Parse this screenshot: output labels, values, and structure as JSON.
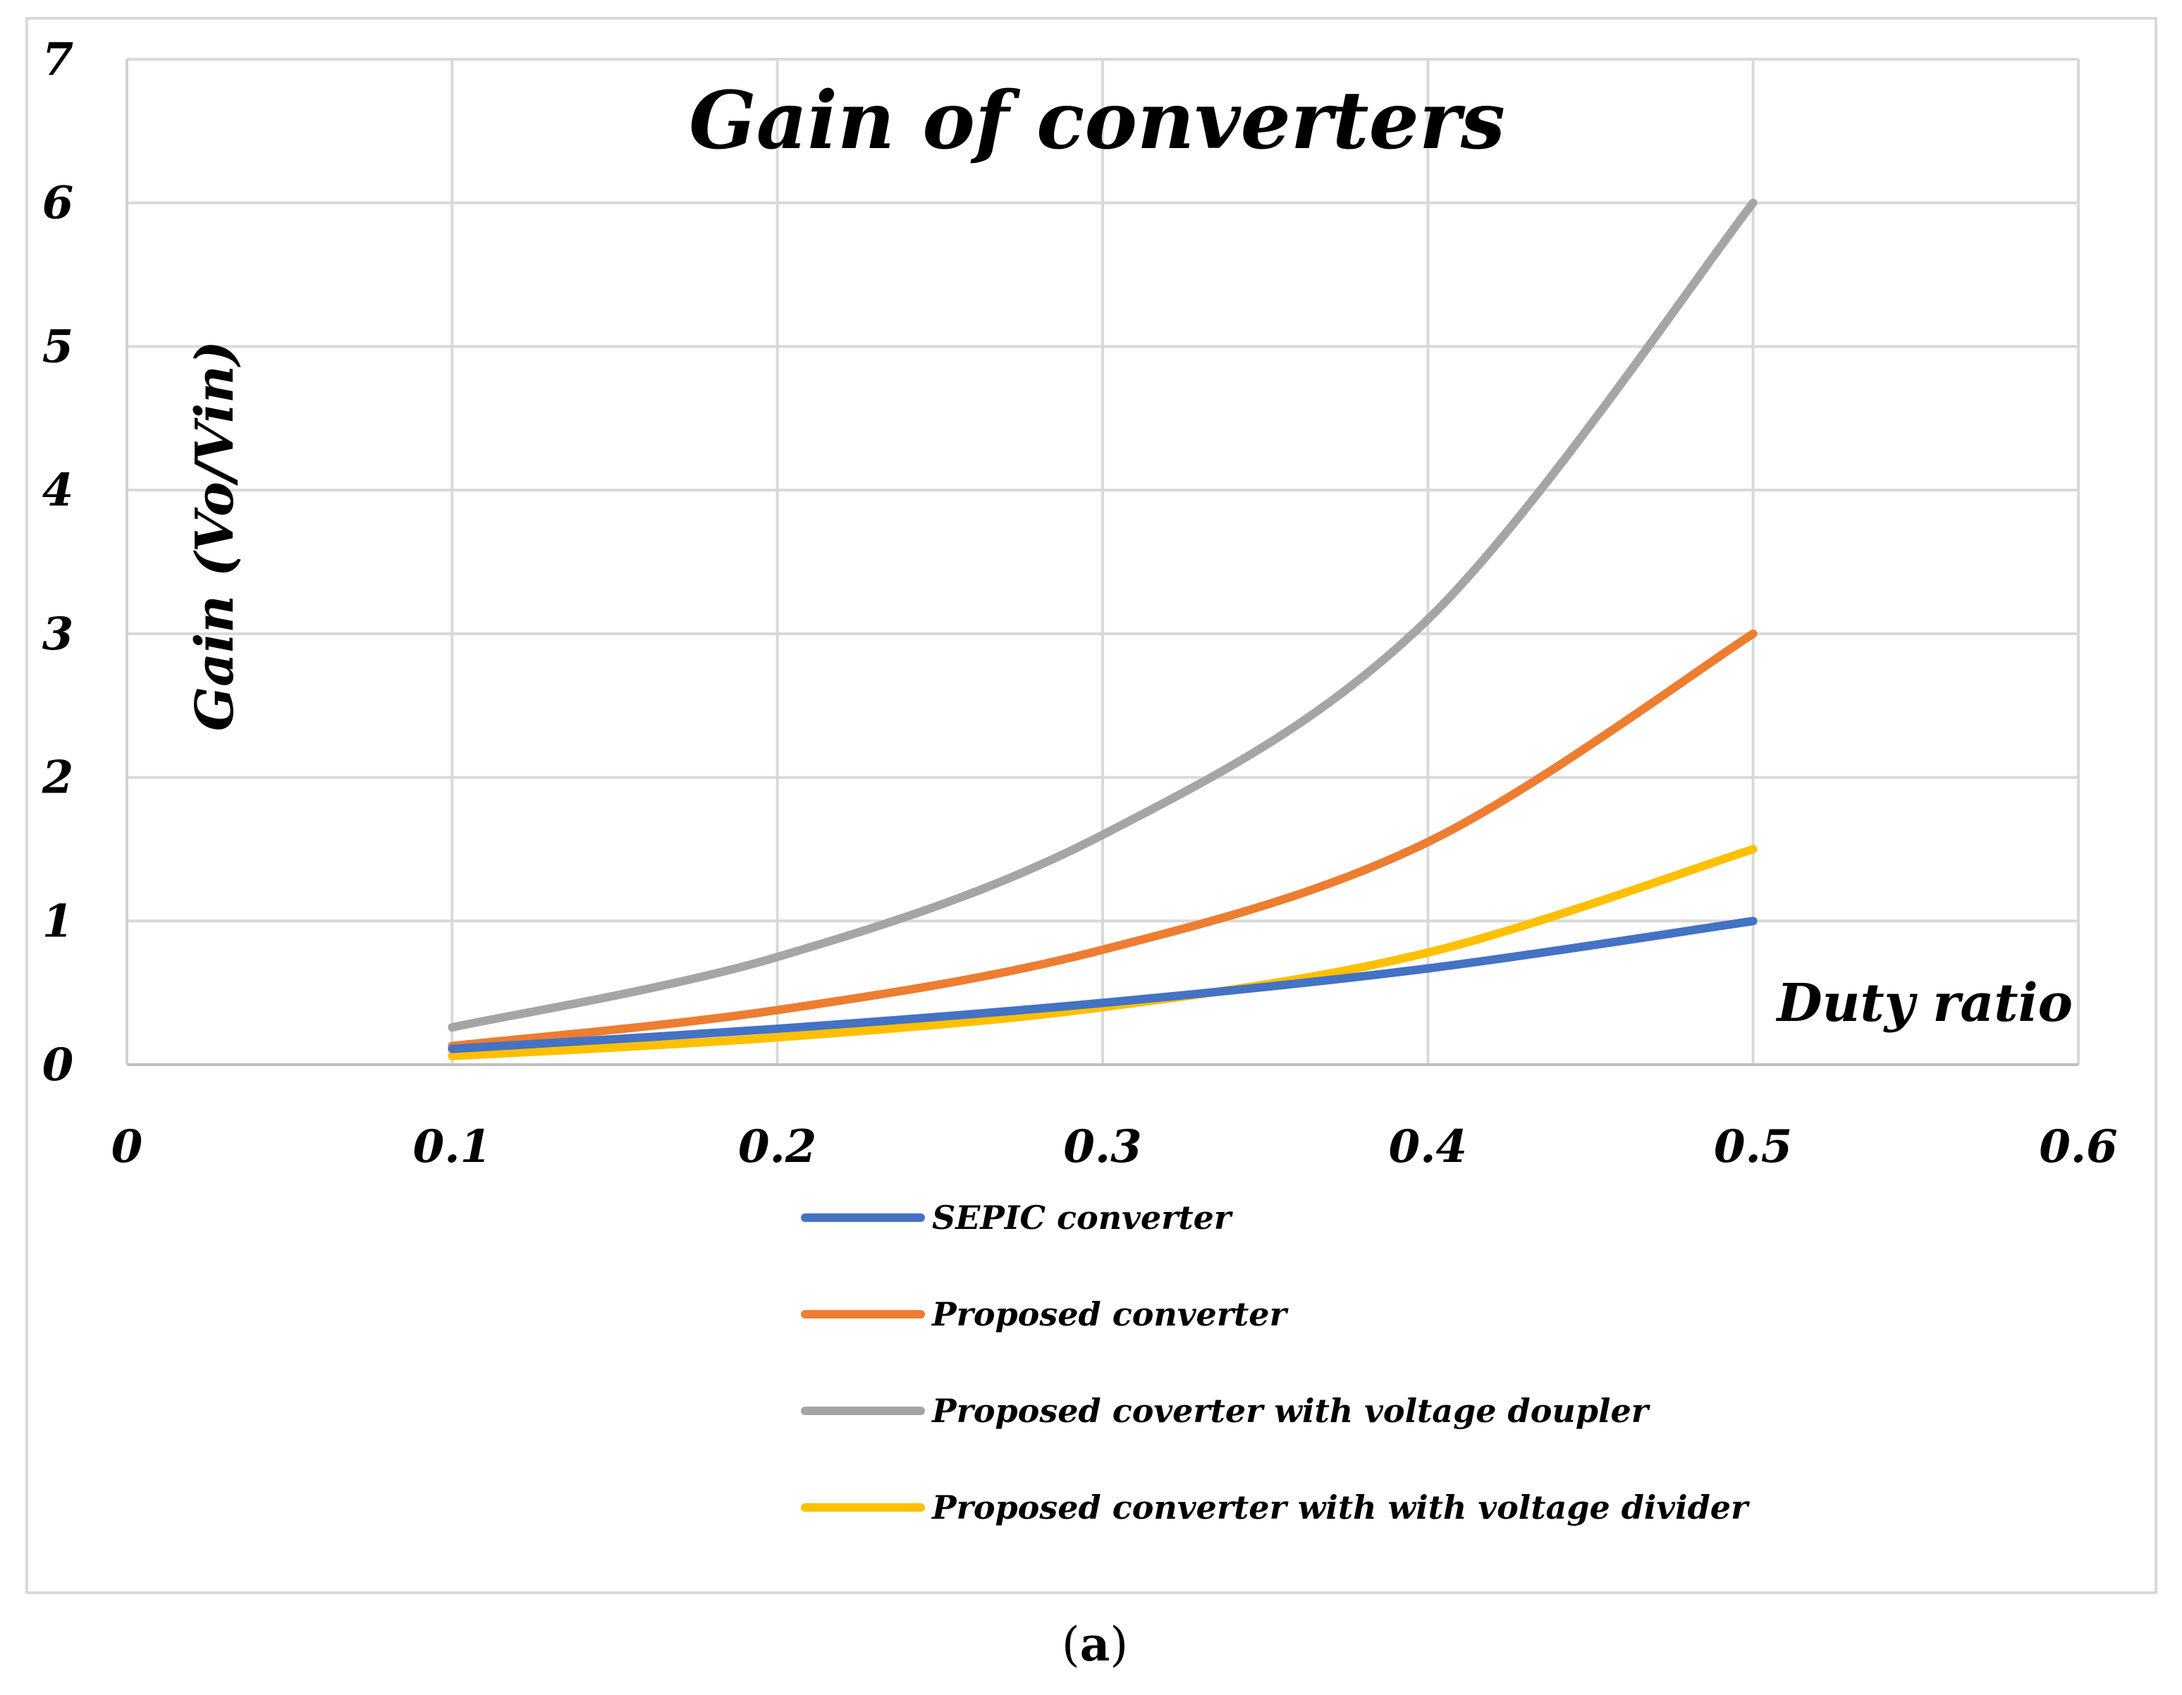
{
  "chart_data": {
    "type": "line",
    "title": "Gain of converters",
    "xlabel": "Duty ratio",
    "ylabel": "Gain (Vo/Vin)",
    "xlim": [
      0,
      0.6
    ],
    "ylim": [
      0,
      7
    ],
    "x_ticks": [
      "0",
      "0.1",
      "0.2",
      "0.3",
      "0.4",
      "0.5",
      "0.6"
    ],
    "y_ticks": [
      "0",
      "1",
      "2",
      "3",
      "4",
      "5",
      "6",
      "7"
    ],
    "x_tick_values": [
      0,
      0.1,
      0.2,
      0.3,
      0.4,
      0.5,
      0.6
    ],
    "y_tick_values": [
      0,
      1,
      2,
      3,
      4,
      5,
      6,
      7
    ],
    "grid": true,
    "legend_position": "bottom",
    "x": [
      0.1,
      0.2,
      0.3,
      0.4,
      0.5
    ],
    "series": [
      {
        "name": "SEPIC converter",
        "color": "#4472C4",
        "values": [
          0.11,
          0.25,
          0.43,
          0.67,
          1.0
        ]
      },
      {
        "name": "Proposed converter",
        "color": "#ED7D31",
        "values": [
          0.13,
          0.38,
          0.8,
          1.55,
          3.0
        ]
      },
      {
        "name": "Proposed coverter with voltage doupler",
        "color": "#A5A5A5",
        "values": [
          0.26,
          0.75,
          1.6,
          3.1,
          6.0
        ]
      },
      {
        "name": "Proposed converter with with voltage divider",
        "color": "#FFC000",
        "values": [
          0.06,
          0.19,
          0.4,
          0.78,
          1.5
        ]
      }
    ]
  },
  "caption": {
    "open": "(",
    "letter": "a",
    "close": ")"
  }
}
